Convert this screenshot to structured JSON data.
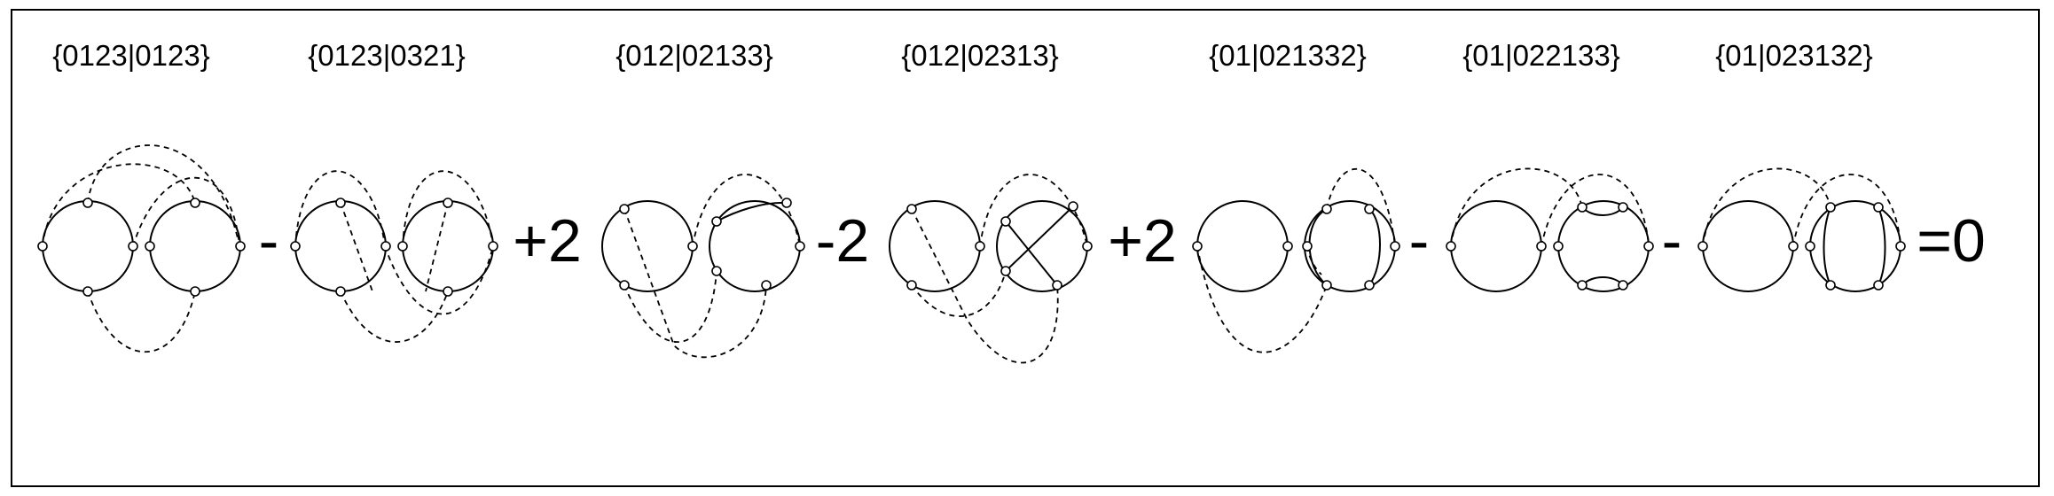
{
  "labels": [
    "{0123|0123}",
    "{0123|0321}",
    "{012|02133}",
    "{012|02313}",
    "{01|021332}",
    "{01|022133}",
    "{01|023132}"
  ],
  "operators": [
    "-",
    "+2",
    "-2",
    "+2",
    "-",
    "-",
    "=0"
  ],
  "colors": {
    "ink": "#000000",
    "background": "#ffffff"
  }
}
